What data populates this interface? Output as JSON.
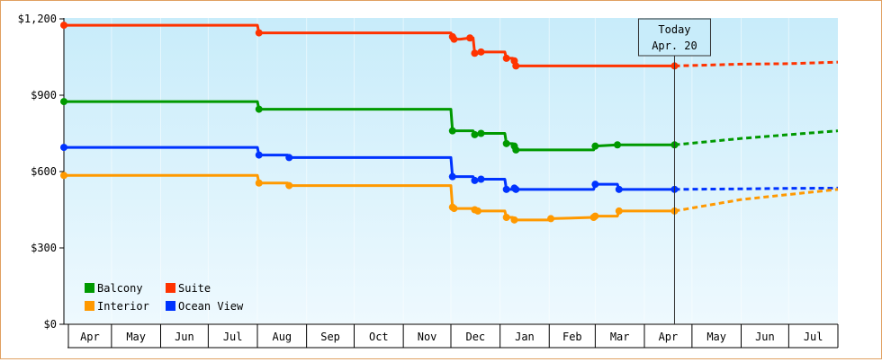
{
  "chart_data": {
    "type": "line",
    "title": "",
    "xlabel": "",
    "ylabel": "",
    "y_ticks": [
      "$0",
      "$300",
      "$600",
      "$900",
      "$1,200"
    ],
    "y_tick_values": [
      0,
      300,
      600,
      900,
      1200
    ],
    "ylim": [
      0,
      1200
    ],
    "x_month_labels": [
      "Apr",
      "May",
      "Jun",
      "Jul",
      "Aug",
      "Sep",
      "Oct",
      "Nov",
      "Dec",
      "Jan",
      "Feb",
      "Mar",
      "Apr",
      "May",
      "Jun",
      "Jul"
    ],
    "x_range": [
      "2011-04-01",
      "2012-08-01"
    ],
    "today": {
      "line1": "Today",
      "line2": "Apr. 20",
      "date": "2012-04-20"
    },
    "legend_placement": "bottom-left",
    "grid": {
      "vertical": true,
      "horizontal": false
    },
    "series": [
      {
        "name": "Suite",
        "color": "#ff3300",
        "points": [
          [
            "2011-04-01",
            1175
          ],
          [
            "2011-08-01",
            1175
          ],
          [
            "2011-08-02",
            1145
          ],
          [
            "2011-12-01",
            1145
          ],
          [
            "2011-12-02",
            1130
          ],
          [
            "2011-12-03",
            1120
          ],
          [
            "2011-12-07",
            1120
          ],
          [
            "2011-12-13",
            1125
          ],
          [
            "2011-12-15",
            1125
          ],
          [
            "2011-12-16",
            1065
          ],
          [
            "2011-12-18",
            1065
          ],
          [
            "2011-12-20",
            1070
          ],
          [
            "2012-01-04",
            1070
          ],
          [
            "2012-01-05",
            1045
          ],
          [
            "2012-01-09",
            1045
          ],
          [
            "2012-01-10",
            1035
          ],
          [
            "2012-01-11",
            1015
          ],
          [
            "2012-02-01",
            1015
          ],
          [
            "2012-02-02",
            1015
          ],
          [
            "2012-04-20",
            1015
          ]
        ],
        "forecast": [
          [
            "2012-04-20",
            1015
          ],
          [
            "2012-06-01",
            1022
          ],
          [
            "2012-07-01",
            1024
          ],
          [
            "2012-08-01",
            1030
          ]
        ]
      },
      {
        "name": "Balcony",
        "color": "#009900",
        "points": [
          [
            "2011-04-01",
            875
          ],
          [
            "2011-08-01",
            875
          ],
          [
            "2011-08-02",
            845
          ],
          [
            "2011-12-01",
            845
          ],
          [
            "2011-12-02",
            760
          ],
          [
            "2011-12-15",
            760
          ],
          [
            "2011-12-16",
            745
          ],
          [
            "2011-12-18",
            745
          ],
          [
            "2011-12-20",
            750
          ],
          [
            "2012-01-04",
            750
          ],
          [
            "2012-01-05",
            710
          ],
          [
            "2012-01-09",
            710
          ],
          [
            "2012-01-10",
            700
          ],
          [
            "2012-01-11",
            685
          ],
          [
            "2012-02-01",
            685
          ],
          [
            "2012-02-29",
            685
          ],
          [
            "2012-03-01",
            700
          ],
          [
            "2012-03-15",
            705
          ],
          [
            "2012-04-20",
            705
          ]
        ],
        "forecast": [
          [
            "2012-04-20",
            705
          ],
          [
            "2012-06-01",
            730
          ],
          [
            "2012-07-01",
            745
          ],
          [
            "2012-08-01",
            760
          ]
        ]
      },
      {
        "name": "Ocean View",
        "color": "#0033ff",
        "points": [
          [
            "2011-04-01",
            695
          ],
          [
            "2011-08-01",
            695
          ],
          [
            "2011-08-02",
            665
          ],
          [
            "2011-08-20",
            665
          ],
          [
            "2011-08-21",
            655
          ],
          [
            "2011-12-01",
            655
          ],
          [
            "2011-12-02",
            580
          ],
          [
            "2011-12-15",
            580
          ],
          [
            "2011-12-16",
            565
          ],
          [
            "2011-12-18",
            565
          ],
          [
            "2011-12-20",
            570
          ],
          [
            "2012-01-04",
            570
          ],
          [
            "2012-01-05",
            530
          ],
          [
            "2012-01-09",
            530
          ],
          [
            "2012-01-10",
            535
          ],
          [
            "2012-01-11",
            530
          ],
          [
            "2012-02-01",
            530
          ],
          [
            "2012-02-29",
            530
          ],
          [
            "2012-03-01",
            550
          ],
          [
            "2012-03-15",
            550
          ],
          [
            "2012-03-16",
            530
          ],
          [
            "2012-04-20",
            530
          ]
        ],
        "forecast": [
          [
            "2012-04-20",
            530
          ],
          [
            "2012-06-01",
            532
          ],
          [
            "2012-07-01",
            534
          ],
          [
            "2012-08-01",
            535
          ]
        ]
      },
      {
        "name": "Interior",
        "color": "#ff9900",
        "points": [
          [
            "2011-04-01",
            585
          ],
          [
            "2011-08-01",
            585
          ],
          [
            "2011-08-02",
            555
          ],
          [
            "2011-08-20",
            555
          ],
          [
            "2011-08-21",
            545
          ],
          [
            "2011-12-01",
            545
          ],
          [
            "2011-12-02",
            460
          ],
          [
            "2011-12-03",
            455
          ],
          [
            "2011-12-15",
            455
          ],
          [
            "2011-12-16",
            450
          ],
          [
            "2011-12-18",
            445
          ],
          [
            "2011-12-20",
            445
          ],
          [
            "2012-01-04",
            445
          ],
          [
            "2012-01-05",
            420
          ],
          [
            "2012-01-09",
            420
          ],
          [
            "2012-01-10",
            410
          ],
          [
            "2012-01-11",
            410
          ],
          [
            "2012-02-01",
            410
          ],
          [
            "2012-02-02",
            415
          ],
          [
            "2012-02-29",
            420
          ],
          [
            "2012-03-01",
            425
          ],
          [
            "2012-03-15",
            425
          ],
          [
            "2012-03-16",
            445
          ],
          [
            "2012-04-20",
            445
          ]
        ],
        "forecast": [
          [
            "2012-04-20",
            445
          ],
          [
            "2012-06-01",
            490
          ],
          [
            "2012-07-01",
            510
          ],
          [
            "2012-08-01",
            530
          ]
        ]
      }
    ],
    "legend": [
      {
        "name": "Balcony",
        "color": "#009900"
      },
      {
        "name": "Suite",
        "color": "#ff3300"
      },
      {
        "name": "Interior",
        "color": "#ff9900"
      },
      {
        "name": "Ocean View",
        "color": "#0033ff"
      }
    ]
  }
}
